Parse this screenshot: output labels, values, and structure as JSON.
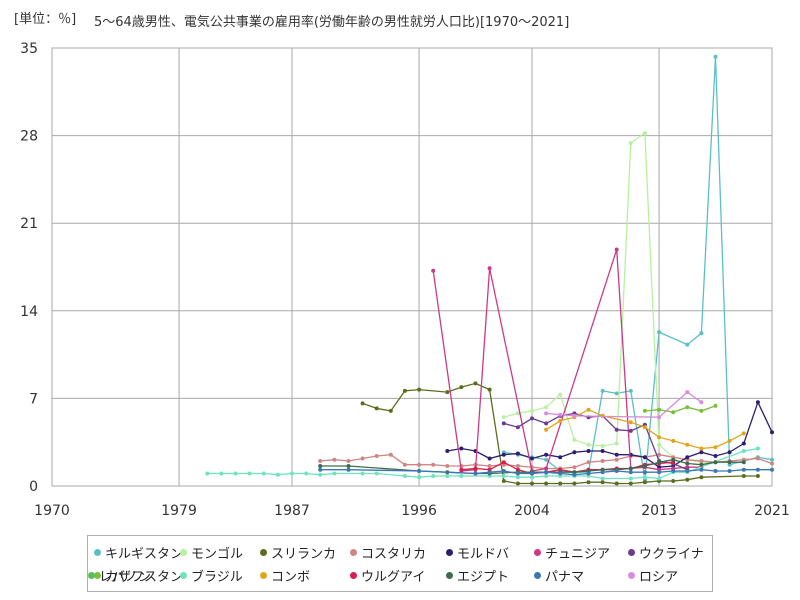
{
  "header": {
    "unit": "[単位：％]",
    "title": "5～64歳男性、電気公共事業の雇用率(労働年齢の男性就労人口比)[1970～2021]"
  },
  "chart_data": {
    "type": "line",
    "title": "5～64歳男性、電気公共事業の雇用率(労働年齢の男性就労人口比)[1970～2021]",
    "unit": "[単位：％]",
    "xlim": [
      1970,
      2021
    ],
    "ylim": [
      0,
      35
    ],
    "x_ticks": [
      1970,
      1979,
      1987,
      1996,
      2004,
      2013,
      2021
    ],
    "y_ticks": [
      0,
      7,
      14,
      21,
      28,
      35
    ],
    "grid": true,
    "legend_position": "bottom",
    "series": [
      {
        "name": "キルギスタン",
        "color": "#5bc0c4",
        "points": [
          [
            2002,
            2.7
          ],
          [
            2003,
            2.5
          ],
          [
            2004,
            2.3
          ],
          [
            2005,
            2.1
          ],
          [
            2006,
            1.2
          ],
          [
            2007,
            1.1
          ],
          [
            2008,
            1.1
          ],
          [
            2009,
            7.6
          ],
          [
            2010,
            7.4
          ],
          [
            2011,
            7.6
          ],
          [
            2012,
            0.5
          ],
          [
            2013,
            12.3
          ],
          [
            2015,
            11.3
          ],
          [
            2016,
            12.2
          ],
          [
            2017,
            34.3
          ],
          [
            2018,
            1.7
          ],
          [
            2019,
            2.0
          ],
          [
            2020,
            2.3
          ],
          [
            2021,
            2.1
          ]
        ]
      },
      {
        "name": "モンゴル",
        "color": "#b7f0a0",
        "points": [
          [
            2002,
            5.5
          ],
          [
            2003,
            5.8
          ],
          [
            2004,
            6.0
          ],
          [
            2005,
            6.3
          ],
          [
            2006,
            7.3
          ],
          [
            2007,
            3.7
          ],
          [
            2008,
            3.3
          ],
          [
            2009,
            3.2
          ],
          [
            2010,
            3.4
          ],
          [
            2011,
            27.4
          ],
          [
            2012,
            28.2
          ],
          [
            2013,
            3.3
          ],
          [
            2014,
            2.3
          ],
          [
            2015,
            2.1
          ],
          [
            2016,
            1.9
          ],
          [
            2017,
            1.9
          ]
        ]
      },
      {
        "name": "スリランカ",
        "color": "#5a6e1e",
        "points": [
          [
            1992,
            6.6
          ],
          [
            1993,
            6.2
          ],
          [
            1994,
            6.0
          ],
          [
            1995,
            7.6
          ],
          [
            1996,
            7.7
          ],
          [
            1998,
            7.5
          ],
          [
            1999,
            7.9
          ],
          [
            2000,
            8.2
          ],
          [
            2001,
            7.7
          ],
          [
            2002,
            0.4
          ],
          [
            2003,
            0.2
          ],
          [
            2004,
            0.2
          ],
          [
            2005,
            0.2
          ],
          [
            2006,
            0.2
          ],
          [
            2007,
            0.2
          ],
          [
            2008,
            0.3
          ],
          [
            2009,
            0.3
          ],
          [
            2010,
            0.2
          ],
          [
            2011,
            0.2
          ],
          [
            2012,
            0.3
          ],
          [
            2013,
            0.4
          ],
          [
            2014,
            0.4
          ],
          [
            2015,
            0.5
          ],
          [
            2016,
            0.7
          ],
          [
            2019,
            0.8
          ],
          [
            2020,
            0.8
          ]
        ]
      },
      {
        "name": "コスタリカ",
        "color": "#d08585",
        "points": [
          [
            1989,
            2.0
          ],
          [
            1990,
            2.1
          ],
          [
            1991,
            2.0
          ],
          [
            1992,
            2.2
          ],
          [
            1993,
            2.4
          ],
          [
            1994,
            2.5
          ],
          [
            1995,
            1.7
          ],
          [
            1996,
            1.7
          ],
          [
            1997,
            1.7
          ],
          [
            1998,
            1.6
          ],
          [
            1999,
            1.6
          ],
          [
            2000,
            1.7
          ],
          [
            2001,
            1.6
          ],
          [
            2002,
            1.7
          ],
          [
            2003,
            1.6
          ],
          [
            2004,
            1.5
          ],
          [
            2005,
            1.4
          ],
          [
            2006,
            1.4
          ],
          [
            2007,
            1.5
          ],
          [
            2008,
            1.9
          ],
          [
            2009,
            2.0
          ],
          [
            2010,
            2.1
          ],
          [
            2011,
            2.4
          ],
          [
            2012,
            2.3
          ],
          [
            2013,
            2.5
          ],
          [
            2014,
            2.3
          ],
          [
            2015,
            2.1
          ],
          [
            2016,
            2.0
          ],
          [
            2017,
            1.9
          ],
          [
            2018,
            2.0
          ],
          [
            2019,
            2.1
          ],
          [
            2020,
            2.2
          ],
          [
            2021,
            1.8
          ]
        ]
      },
      {
        "name": "モルドバ",
        "color": "#2e1e70",
        "points": [
          [
            1998,
            2.8
          ],
          [
            1999,
            3.0
          ],
          [
            2000,
            2.8
          ],
          [
            2001,
            2.2
          ],
          [
            2002,
            2.5
          ],
          [
            2003,
            2.6
          ],
          [
            2004,
            2.2
          ],
          [
            2005,
            2.5
          ],
          [
            2006,
            2.3
          ],
          [
            2007,
            2.7
          ],
          [
            2008,
            2.8
          ],
          [
            2009,
            2.8
          ],
          [
            2010,
            2.5
          ],
          [
            2011,
            2.5
          ],
          [
            2012,
            2.3
          ],
          [
            2013,
            1.5
          ],
          [
            2014,
            1.6
          ],
          [
            2015,
            2.3
          ],
          [
            2016,
            2.7
          ],
          [
            2017,
            2.4
          ],
          [
            2018,
            2.7
          ],
          [
            2019,
            3.4
          ],
          [
            2020,
            6.7
          ],
          [
            2021,
            4.3
          ]
        ]
      },
      {
        "name": "チュニジア",
        "color": "#cc3a86",
        "points": [
          [
            1997,
            17.2
          ],
          [
            1999,
            1.2
          ],
          [
            2000,
            1.3
          ],
          [
            2001,
            17.4
          ],
          [
            2004,
            1.2
          ],
          [
            2005,
            1.4
          ],
          [
            2010,
            18.9
          ],
          [
            2011,
            1.4
          ],
          [
            2012,
            1.5
          ],
          [
            2013,
            1.3
          ],
          [
            2014,
            1.4
          ],
          [
            2015,
            1.5
          ],
          [
            2016,
            1.5
          ]
        ]
      },
      {
        "name": "ウクライナ",
        "color": "#6a3d8e",
        "points": [
          [
            2002,
            5.0
          ],
          [
            2003,
            4.7
          ],
          [
            2004,
            5.4
          ],
          [
            2005,
            5.0
          ],
          [
            2006,
            5.6
          ],
          [
            2007,
            5.8
          ],
          [
            2008,
            5.5
          ],
          [
            2009,
            5.6
          ],
          [
            2010,
            4.5
          ],
          [
            2011,
            4.4
          ],
          [
            2012,
            4.9
          ],
          [
            2013,
            2.0
          ],
          [
            2014,
            1.8
          ],
          [
            2015,
            1.3
          ]
        ]
      },
      {
        "name": "カザフスタン",
        "color": "#7bbf3c",
        "points": [
          [
            2012,
            6.0
          ],
          [
            2013,
            6.1
          ],
          [
            2014,
            5.9
          ],
          [
            2015,
            6.3
          ],
          [
            2016,
            6.0
          ],
          [
            2017,
            6.4
          ]
        ]
      },
      {
        "name": "ブラジル",
        "color": "#6de3c0",
        "points": [
          [
            1981,
            1.0
          ],
          [
            1982,
            1.0
          ],
          [
            1983,
            1.0
          ],
          [
            1984,
            1.0
          ],
          [
            1985,
            1.0
          ],
          [
            1986,
            0.9
          ],
          [
            1987,
            1.0
          ],
          [
            1988,
            1.0
          ],
          [
            1989,
            0.9
          ],
          [
            1990,
            1.0
          ],
          [
            1992,
            1.0
          ],
          [
            1993,
            1.0
          ],
          [
            1995,
            0.8
          ],
          [
            1996,
            0.7
          ],
          [
            1997,
            0.8
          ],
          [
            1998,
            0.8
          ],
          [
            1999,
            0.8
          ],
          [
            2001,
            0.8
          ],
          [
            2002,
            0.8
          ],
          [
            2003,
            0.7
          ],
          [
            2004,
            0.7
          ],
          [
            2005,
            0.8
          ],
          [
            2006,
            0.8
          ],
          [
            2007,
            0.8
          ],
          [
            2008,
            0.8
          ],
          [
            2009,
            0.6
          ],
          [
            2011,
            0.6
          ],
          [
            2012,
            0.7
          ],
          [
            2013,
            0.6
          ],
          [
            2014,
            1.1
          ],
          [
            2015,
            1.1
          ],
          [
            2019,
            2.8
          ],
          [
            2020,
            3.0
          ]
        ]
      },
      {
        "name": "コンボ",
        "color": "#e0a51f",
        "points": [
          [
            2005,
            4.5
          ],
          [
            2006,
            5.2
          ],
          [
            2007,
            5.5
          ],
          [
            2008,
            6.1
          ],
          [
            2009,
            5.6
          ],
          [
            2011,
            5.1
          ],
          [
            2012,
            4.7
          ],
          [
            2013,
            3.9
          ],
          [
            2014,
            3.6
          ],
          [
            2015,
            3.3
          ],
          [
            2016,
            3.0
          ],
          [
            2017,
            3.1
          ],
          [
            2018,
            3.6
          ],
          [
            2019,
            4.2
          ]
        ]
      },
      {
        "name": "ウルグアイ",
        "color": "#d81e4a",
        "points": [
          [
            1999,
            1.3
          ],
          [
            2000,
            1.4
          ],
          [
            2001,
            1.3
          ],
          [
            2002,
            1.9
          ],
          [
            2003,
            1.3
          ],
          [
            2004,
            1.0
          ],
          [
            2005,
            1.1
          ],
          [
            2006,
            1.3
          ],
          [
            2007,
            1.1
          ],
          [
            2008,
            1.3
          ],
          [
            2009,
            1.3
          ],
          [
            2010,
            1.4
          ],
          [
            2011,
            1.4
          ],
          [
            2012,
            1.7
          ],
          [
            2013,
            1.8
          ],
          [
            2014,
            1.9
          ]
        ]
      },
      {
        "name": "エジプト",
        "color": "#3d6b4f",
        "points": [
          [
            1989,
            1.6
          ],
          [
            1991,
            1.6
          ],
          [
            1996,
            1.2
          ],
          [
            1998,
            1.1
          ],
          [
            2000,
            1.0
          ],
          [
            2001,
            1.0
          ],
          [
            2003,
            1.1
          ],
          [
            2004,
            1.1
          ],
          [
            2005,
            1.1
          ],
          [
            2006,
            1.1
          ],
          [
            2007,
            1.1
          ],
          [
            2008,
            1.2
          ],
          [
            2009,
            1.3
          ],
          [
            2010,
            1.3
          ],
          [
            2011,
            1.4
          ],
          [
            2012,
            1.6
          ],
          [
            2013,
            1.9
          ],
          [
            2014,
            2.1
          ],
          [
            2015,
            1.8
          ],
          [
            2016,
            1.7
          ],
          [
            2017,
            1.9
          ],
          [
            2018,
            1.9
          ],
          [
            2019,
            1.9
          ]
        ]
      },
      {
        "name": "パナマ",
        "color": "#3a78b5",
        "points": [
          [
            1989,
            1.3
          ],
          [
            1991,
            1.3
          ],
          [
            1996,
            1.2
          ],
          [
            2000,
            1.0
          ],
          [
            2001,
            1.1
          ],
          [
            2002,
            1.2
          ],
          [
            2003,
            1.0
          ],
          [
            2004,
            1.0
          ],
          [
            2005,
            1.1
          ],
          [
            2006,
            1.0
          ],
          [
            2007,
            0.9
          ],
          [
            2008,
            1.0
          ],
          [
            2009,
            1.1
          ],
          [
            2010,
            1.2
          ],
          [
            2011,
            1.1
          ],
          [
            2012,
            1.1
          ],
          [
            2013,
            1.1
          ],
          [
            2014,
            1.2
          ],
          [
            2015,
            1.2
          ],
          [
            2016,
            1.3
          ],
          [
            2017,
            1.2
          ],
          [
            2018,
            1.2
          ],
          [
            2019,
            1.3
          ],
          [
            2020,
            1.3
          ],
          [
            2021,
            1.3
          ]
        ]
      },
      {
        "name": "ロシア",
        "color": "#d98cde",
        "points": [
          [
            2005,
            5.8
          ],
          [
            2006,
            5.7
          ],
          [
            2007,
            5.6
          ],
          [
            2013,
            5.5
          ],
          [
            2015,
            7.5
          ],
          [
            2016,
            6.7
          ]
        ]
      },
      {
        "name": "レバノン",
        "color": "#58c05a",
        "points": []
      }
    ]
  }
}
